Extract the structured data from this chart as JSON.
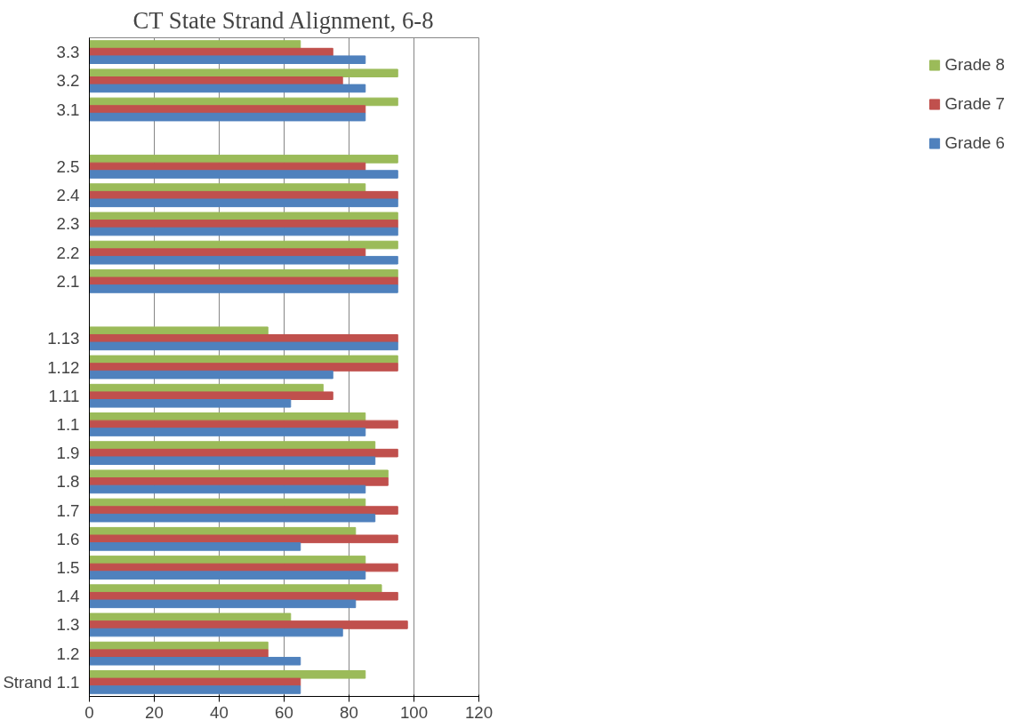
{
  "chart_data": {
    "type": "bar",
    "orientation": "horizontal",
    "title": "CT State Strand Alignment, 6-8",
    "categories": [
      "3.3",
      "3.2",
      "3.1",
      null,
      "2.5",
      "2.4",
      "2.3",
      "2.2",
      "2.1",
      null,
      "1.13",
      "1.12",
      "1.11",
      "1.1",
      "1.9",
      "1.8",
      "1.7",
      "1.6",
      "1.5",
      "1.4",
      "1.3",
      "1.2",
      "Strand 1.1"
    ],
    "series": [
      {
        "name": "Grade 8",
        "color": "#9bbb59",
        "values": [
          65,
          95,
          95,
          null,
          95,
          85,
          95,
          95,
          95,
          null,
          55,
          95,
          72,
          85,
          88,
          92,
          85,
          82,
          85,
          90,
          62,
          55,
          85
        ]
      },
      {
        "name": "Grade 7",
        "color": "#c0504d",
        "values": [
          75,
          78,
          85,
          null,
          85,
          95,
          95,
          85,
          95,
          null,
          95,
          95,
          75,
          95,
          95,
          92,
          95,
          95,
          95,
          95,
          98,
          55,
          65
        ]
      },
      {
        "name": "Grade 6",
        "color": "#4f81bd",
        "values": [
          85,
          85,
          85,
          null,
          95,
          95,
          95,
          95,
          95,
          null,
          95,
          75,
          62,
          85,
          88,
          85,
          88,
          65,
          85,
          82,
          78,
          65,
          65
        ]
      }
    ],
    "xlim": [
      0,
      120
    ],
    "xticks": [
      0,
      20,
      40,
      60,
      80,
      100,
      120
    ],
    "grid": "x",
    "legend": "right"
  }
}
